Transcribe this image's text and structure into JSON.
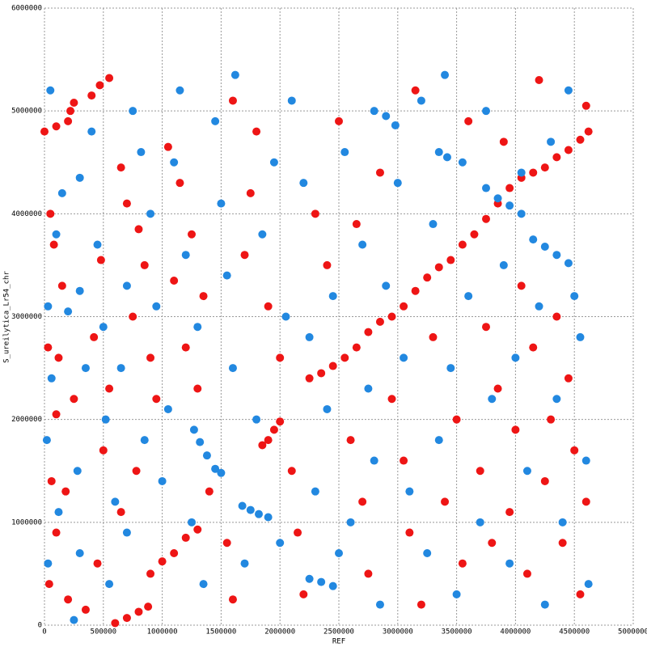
{
  "chart_data": {
    "type": "scatter",
    "xlabel": "REF",
    "ylabel": "S_ureilytica_Lr54_chr",
    "xlim": [
      0,
      5000000
    ],
    "ylim": [
      0,
      6000000
    ],
    "xticks": [
      0,
      500000,
      1000000,
      1500000,
      2000000,
      2500000,
      3000000,
      3500000,
      4000000,
      4500000,
      5000000
    ],
    "yticks": [
      0,
      1000000,
      2000000,
      3000000,
      4000000,
      5000000,
      6000000
    ],
    "grid": true,
    "series": [
      {
        "color": "#ee1515",
        "x": [
          2250000,
          2350000,
          2450000,
          2550000,
          2650000,
          2750000,
          2850000,
          2950000,
          3050000,
          3150000,
          3250000,
          3350000,
          3450000,
          3550000,
          3650000,
          3750000,
          3850000,
          3950000,
          4050000,
          4150000,
          4250000,
          4350000,
          4450000,
          4550000,
          4620000,
          600000,
          700000,
          800000,
          880000,
          900000,
          1000000,
          1100000,
          1200000,
          1300000,
          0,
          100000,
          200000,
          220000,
          250000,
          400000,
          470000,
          550000,
          1850000,
          1900000,
          1950000,
          2000000,
          50000,
          80000,
          150000,
          30000,
          120000,
          250000,
          100000,
          180000,
          60000,
          100000,
          40000,
          200000,
          350000,
          450000,
          500000,
          550000,
          420000,
          480000,
          650000,
          700000,
          800000,
          850000,
          750000,
          900000,
          950000,
          780000,
          650000,
          1100000,
          1050000,
          1150000,
          1250000,
          1350000,
          1200000,
          1300000,
          1400000,
          1550000,
          1600000,
          1700000,
          1750000,
          1800000,
          1600000,
          1900000,
          2000000,
          2100000,
          2150000,
          2200000,
          2300000,
          2400000,
          2500000,
          2600000,
          2700000,
          2750000,
          2650000,
          2850000,
          2950000,
          3050000,
          3100000,
          3200000,
          3150000,
          3300000,
          3400000,
          3500000,
          3550000,
          3600000,
          3700000,
          3750000,
          3800000,
          3850000,
          3900000,
          3950000,
          4000000,
          4050000,
          4100000,
          4150000,
          4200000,
          4250000,
          4300000,
          4350000,
          4400000,
          4450000,
          4500000,
          4550000,
          4600000,
          4600000
        ],
        "values": [
          2400000,
          2450000,
          2520000,
          2600000,
          2700000,
          2850000,
          2950000,
          3000000,
          3100000,
          3250000,
          3380000,
          3480000,
          3550000,
          3700000,
          3800000,
          3950000,
          4100000,
          4250000,
          4350000,
          4400000,
          4450000,
          4550000,
          4620000,
          4720000,
          4800000,
          20000,
          70000,
          130000,
          180000,
          500000,
          620000,
          700000,
          850000,
          930000,
          4800000,
          4850000,
          4900000,
          5000000,
          5080000,
          5150000,
          5250000,
          5320000,
          1750000,
          1800000,
          1900000,
          1980000,
          4000000,
          3700000,
          3300000,
          2700000,
          2600000,
          2200000,
          2050000,
          1300000,
          1400000,
          900000,
          400000,
          250000,
          150000,
          600000,
          1700000,
          2300000,
          2800000,
          3550000,
          4450000,
          4100000,
          3850000,
          3500000,
          3000000,
          2600000,
          2200000,
          1500000,
          1100000,
          3350000,
          4650000,
          4300000,
          3800000,
          3200000,
          2700000,
          2300000,
          1300000,
          800000,
          250000,
          3600000,
          4200000,
          4800000,
          5100000,
          3100000,
          2600000,
          1500000,
          900000,
          300000,
          4000000,
          3500000,
          4900000,
          1800000,
          1200000,
          500000,
          3900000,
          4400000,
          2200000,
          1600000,
          900000,
          200000,
          5200000,
          2800000,
          1200000,
          2000000,
          600000,
          4900000,
          1500000,
          2900000,
          800000,
          2300000,
          4700000,
          1100000,
          1900000,
          3300000,
          500000,
          2700000,
          5300000,
          1400000,
          2000000,
          3000000,
          800000,
          2400000,
          1700000,
          300000,
          5050000,
          1200000
        ]
      },
      {
        "color": "#2288e0",
        "x": [
          1270000,
          1320000,
          1380000,
          1450000,
          1500000,
          1680000,
          1750000,
          1820000,
          1900000,
          2800000,
          2900000,
          2980000,
          3350000,
          3420000,
          3750000,
          3850000,
          3950000,
          4050000,
          4150000,
          4250000,
          4350000,
          4450000,
          2250000,
          2350000,
          2450000,
          300000,
          200000,
          50000,
          30000,
          100000,
          150000,
          60000,
          20000,
          120000,
          30000,
          250000,
          300000,
          280000,
          350000,
          300000,
          400000,
          450000,
          500000,
          520000,
          600000,
          550000,
          700000,
          650000,
          700000,
          750000,
          820000,
          900000,
          950000,
          850000,
          1000000,
          1050000,
          1100000,
          1150000,
          1200000,
          1300000,
          1250000,
          1350000,
          1450000,
          1500000,
          1550000,
          1600000,
          1620000,
          1700000,
          1800000,
          1850000,
          1950000,
          2000000,
          2050000,
          2100000,
          2200000,
          2250000,
          2300000,
          2400000,
          2450000,
          2500000,
          2550000,
          2600000,
          2700000,
          2750000,
          2800000,
          2850000,
          2900000,
          3000000,
          3050000,
          3100000,
          3200000,
          3250000,
          3300000,
          3350000,
          3400000,
          3450000,
          3500000,
          3550000,
          3600000,
          3700000,
          3750000,
          3800000,
          3900000,
          3950000,
          4000000,
          4050000,
          4100000,
          4200000,
          4250000,
          4300000,
          4350000,
          4400000,
          4450000,
          4500000,
          4550000,
          4600000,
          4620000
        ],
        "values": [
          1900000,
          1780000,
          1650000,
          1520000,
          1480000,
          1160000,
          1120000,
          1080000,
          1050000,
          5000000,
          4950000,
          4860000,
          4600000,
          4550000,
          4250000,
          4150000,
          4080000,
          4000000,
          3750000,
          3680000,
          3600000,
          3520000,
          450000,
          420000,
          380000,
          3250000,
          3050000,
          5200000,
          3100000,
          3800000,
          4200000,
          2400000,
          1800000,
          1100000,
          600000,
          50000,
          700000,
          1500000,
          2500000,
          4350000,
          4800000,
          3700000,
          2900000,
          2000000,
          1200000,
          400000,
          900000,
          2500000,
          3300000,
          5000000,
          4600000,
          4000000,
          3100000,
          1800000,
          1400000,
          2100000,
          4500000,
          5200000,
          3600000,
          2900000,
          1000000,
          400000,
          4900000,
          4100000,
          3400000,
          2500000,
          5350000,
          600000,
          2000000,
          3800000,
          4500000,
          800000,
          3000000,
          5100000,
          4300000,
          2800000,
          1300000,
          2100000,
          3200000,
          700000,
          4600000,
          1000000,
          3700000,
          2300000,
          1600000,
          200000,
          3300000,
          4300000,
          2600000,
          1300000,
          5100000,
          700000,
          3900000,
          1800000,
          5350000,
          2500000,
          300000,
          4500000,
          3200000,
          1000000,
          5000000,
          2200000,
          3500000,
          600000,
          2600000,
          4400000,
          1500000,
          3100000,
          200000,
          4700000,
          2200000,
          1000000,
          5200000,
          3200000,
          2800000,
          1600000,
          400000
        ]
      }
    ]
  }
}
